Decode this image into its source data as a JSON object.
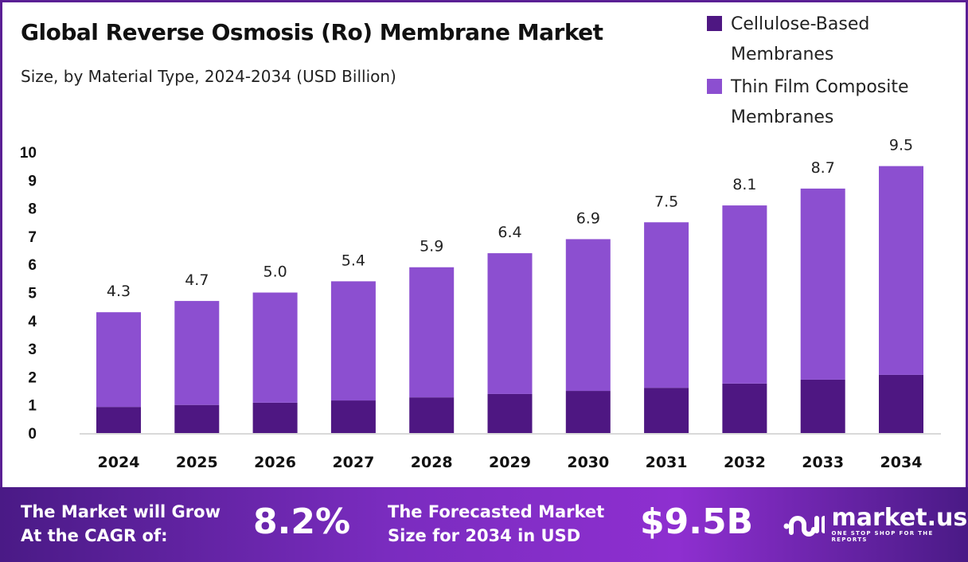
{
  "title": "Global Reverse Osmosis (Ro) Membrane Market",
  "subtitle": "Size, by Material Type, 2024-2034 (USD Billion)",
  "chart_data": {
    "type": "bar",
    "stacked": true,
    "title": "Global Reverse Osmosis (Ro) Membrane Market",
    "subtitle": "Size, by Material Type, 2024-2034 (USD Billion)",
    "categories": [
      "2024",
      "2025",
      "2026",
      "2027",
      "2028",
      "2029",
      "2030",
      "2031",
      "2032",
      "2033",
      "2034"
    ],
    "series": [
      {
        "name": "Cellulose-Based Membranes",
        "color": "#4e1782",
        "values": [
          0.93,
          1.0,
          1.08,
          1.16,
          1.27,
          1.39,
          1.5,
          1.61,
          1.76,
          1.9,
          2.07
        ]
      },
      {
        "name": "Thin Film Composite Membranes",
        "color": "#8c4fd0",
        "values": [
          3.37,
          3.7,
          3.92,
          4.24,
          4.63,
          5.01,
          5.4,
          5.89,
          6.34,
          6.8,
          7.43
        ]
      }
    ],
    "totals": [
      "4.3",
      "4.7",
      "5.0",
      "5.4",
      "5.9",
      "6.4",
      "6.9",
      "7.5",
      "8.1",
      "8.7",
      "9.5"
    ],
    "totals_values": [
      4.3,
      4.7,
      5.0,
      5.4,
      5.9,
      6.4,
      6.9,
      7.5,
      8.1,
      8.7,
      9.5
    ],
    "yticks": [
      "0",
      "1",
      "2",
      "3",
      "4",
      "5",
      "6",
      "7",
      "8",
      "9",
      "10"
    ],
    "ylim": [
      0,
      10
    ],
    "xlabel": "",
    "ylabel": "",
    "grid": false,
    "legend": "top-right"
  },
  "banner": {
    "cagr_label": "The Market will Grow At the CAGR of:",
    "cagr_value": "8.2%",
    "size_label": "The Forecasted Market Size for 2034 in USD",
    "size_value": "$9.5B",
    "logo_name": "market.us",
    "logo_tagline": "ONE STOP SHOP FOR THE REPORTS"
  }
}
